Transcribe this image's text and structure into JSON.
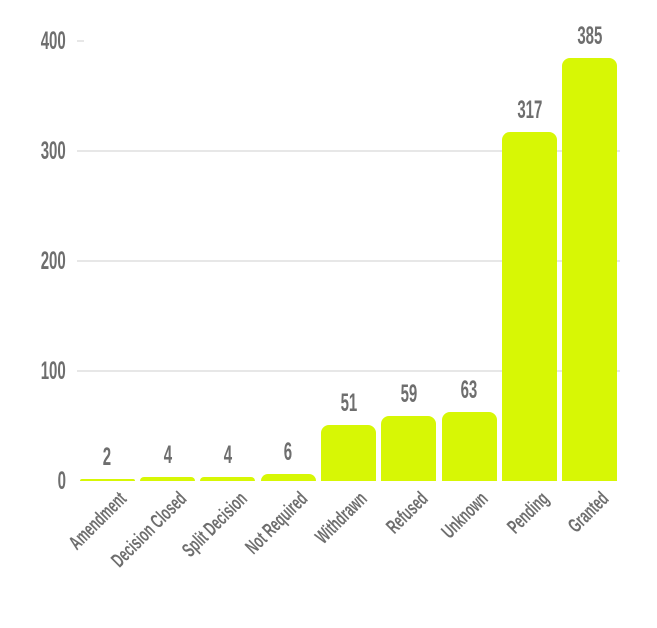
{
  "chart_data": {
    "type": "bar",
    "title": "",
    "xlabel": "",
    "ylabel": "",
    "categories": [
      "Amendment",
      "Decision Closed",
      "Split Decision",
      "Not Required",
      "Withdrawn",
      "Refused",
      "Unknown",
      "Pending",
      "Granted"
    ],
    "values": [
      2,
      4,
      4,
      6,
      51,
      59,
      63,
      317,
      385
    ],
    "yticks": [
      0,
      100,
      200,
      300,
      400
    ],
    "ylim": [
      0,
      400
    ],
    "grid": "horizontal",
    "legend_position": "none",
    "bar_color": "#d7f705",
    "text_color": "#6e6e6e",
    "gridline_color": "#e7e7e7",
    "background_color": "#ffffff"
  }
}
